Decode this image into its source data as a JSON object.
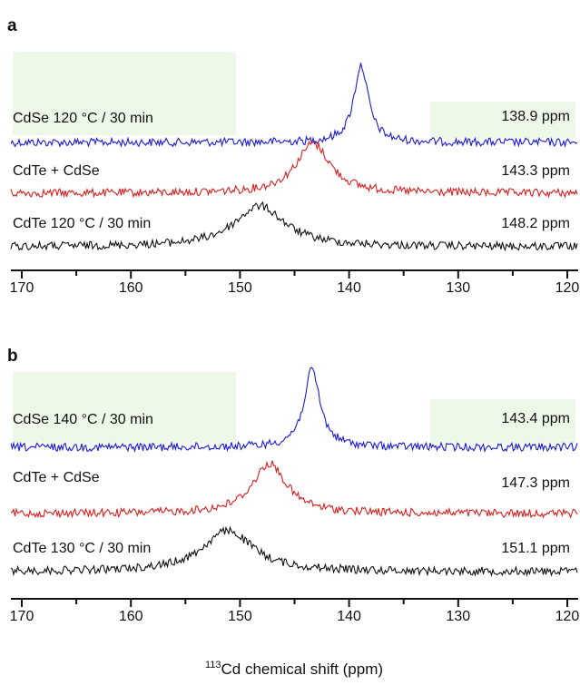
{
  "xlabel_sup": "113",
  "xlabel_rest": "Cd chemical shift (ppm)",
  "colors": {
    "blue": "#1a1adb",
    "red": "#d91f1f",
    "black": "#111111",
    "label_bg": "#eef8e8"
  },
  "chart_data": [
    {
      "type": "line",
      "panel": "a",
      "xlim": [
        171,
        119
      ],
      "x_ticks": [
        170,
        160,
        150,
        140,
        130,
        120
      ],
      "series": [
        {
          "name": "CdSe 120 °C / 30 min",
          "peak_label": "138.9 ppm",
          "peak_ppm": 138.9,
          "height": 0.85,
          "width": 0.8,
          "color": "#1a1adb"
        },
        {
          "name": "CdTe + CdSe",
          "peak_label": "143.3 ppm",
          "peak_ppm": 143.3,
          "height": 0.55,
          "width": 1.9,
          "color": "#d91f1f"
        },
        {
          "name": "CdTe 120 °C / 30 min",
          "peak_label": "148.2 ppm",
          "peak_ppm": 148.2,
          "height": 0.45,
          "width": 2.8,
          "color": "#111111"
        }
      ]
    },
    {
      "type": "line",
      "panel": "b",
      "xlim": [
        171,
        119
      ],
      "x_ticks": [
        170,
        160,
        150,
        140,
        130,
        120
      ],
      "series": [
        {
          "name": "CdSe 140 °C / 30 min",
          "peak_label": "143.4 ppm",
          "peak_ppm": 143.4,
          "height": 0.85,
          "width": 0.9,
          "color": "#1a1adb"
        },
        {
          "name": "CdTe + CdSe",
          "peak_label": "147.3 ppm",
          "peak_ppm": 147.3,
          "height": 0.55,
          "width": 1.9,
          "color": "#d91f1f"
        },
        {
          "name": "CdTe 130 °C / 30 min",
          "peak_label": "151.1 ppm",
          "peak_ppm": 151.1,
          "height": 0.45,
          "width": 2.8,
          "color": "#111111"
        }
      ]
    }
  ]
}
